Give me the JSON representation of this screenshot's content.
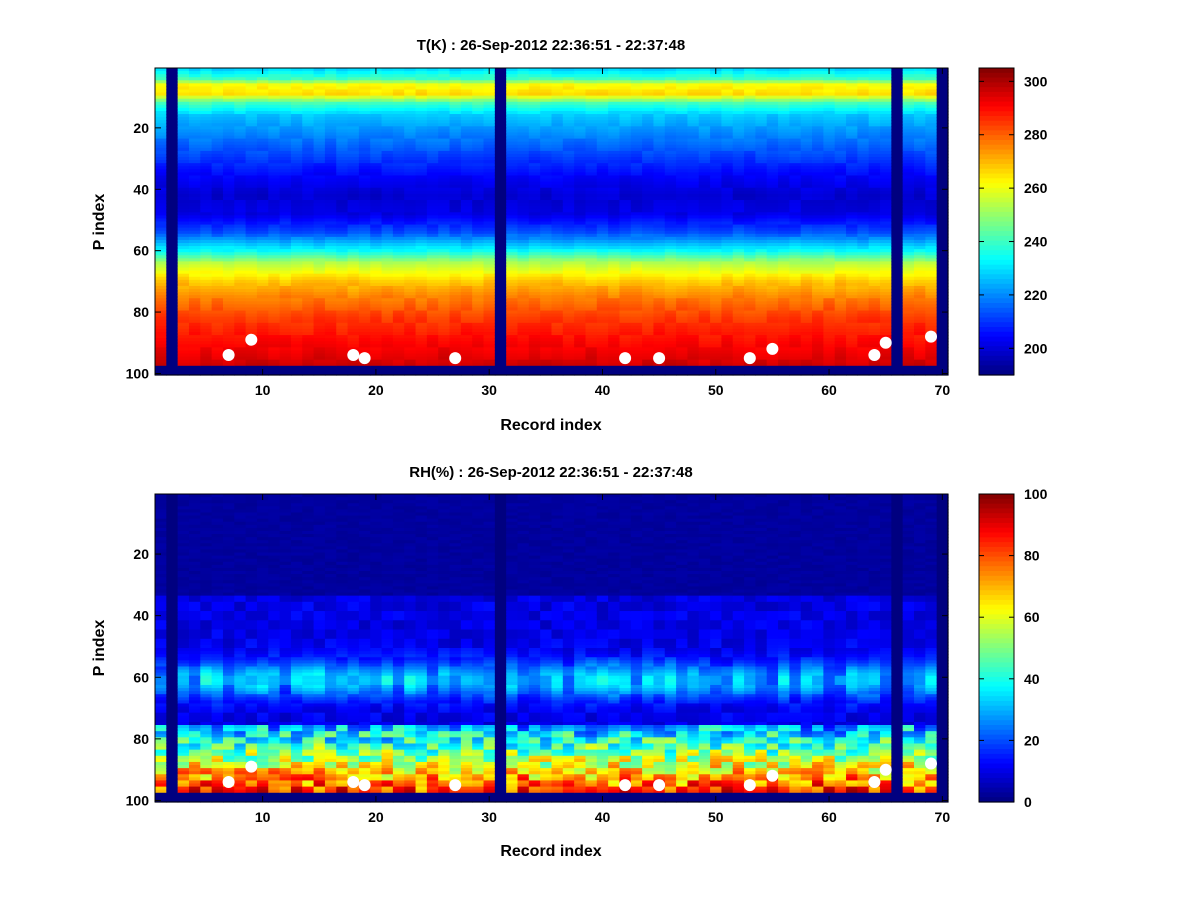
{
  "chart_data": [
    {
      "type": "heatmap",
      "title": "T(K) : 26-Sep-2012 22:36:51 - 22:37:48",
      "xlabel": "Record index",
      "ylabel": "P index",
      "xlim": [
        1,
        70
      ],
      "ylim": [
        1,
        100
      ],
      "y_reversed": true,
      "xticks": [
        10,
        20,
        30,
        40,
        50,
        60,
        70
      ],
      "yticks": [
        20,
        40,
        60,
        80,
        100
      ],
      "colormap": "jet",
      "colorbar": {
        "min": 190,
        "max": 305,
        "ticks": [
          200,
          220,
          240,
          260,
          280,
          300
        ]
      },
      "missing_records": [
        2,
        31,
        66,
        70
      ],
      "surface_points": {
        "x": [
          7,
          9,
          18,
          19,
          27,
          42,
          45,
          53,
          55,
          64,
          65,
          69
        ],
        "y": [
          94,
          89,
          94,
          95,
          95,
          95,
          95,
          95,
          92,
          94,
          90,
          88
        ]
      }
    },
    {
      "type": "heatmap",
      "title": "RH(%) : 26-Sep-2012 22:36:51 - 22:37:48",
      "xlabel": "Record index",
      "ylabel": "P index",
      "xlim": [
        1,
        70
      ],
      "ylim": [
        1,
        100
      ],
      "y_reversed": true,
      "xticks": [
        10,
        20,
        30,
        40,
        50,
        60,
        70
      ],
      "yticks": [
        20,
        40,
        60,
        80,
        100
      ],
      "colormap": "jet",
      "colorbar": {
        "min": 0,
        "max": 100,
        "ticks": [
          0,
          20,
          40,
          60,
          80,
          100
        ]
      },
      "missing_records": [
        2,
        31,
        66,
        70
      ],
      "surface_points": {
        "x": [
          7,
          9,
          18,
          19,
          27,
          42,
          45,
          53,
          55,
          64,
          65,
          69
        ],
        "y": [
          94,
          89,
          94,
          95,
          95,
          95,
          95,
          95,
          92,
          94,
          90,
          88
        ]
      }
    }
  ]
}
